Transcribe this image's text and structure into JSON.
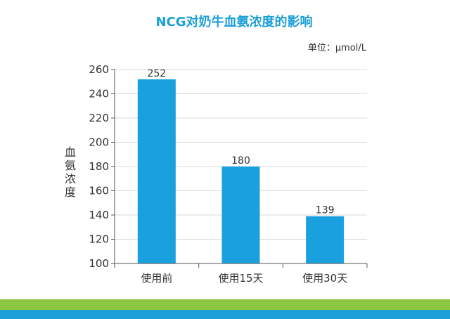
{
  "chart_data": {
    "type": "bar",
    "title": "NCG对奶牛血氨浓度的影响",
    "unit_label": "单位：µmol/L",
    "ylabel": [
      "血",
      "氨",
      "浓",
      "度"
    ],
    "xlabel": "",
    "categories": [
      "使用前",
      "使用15天",
      "使用30天"
    ],
    "values": [
      252,
      180,
      139
    ],
    "ylim": [
      100,
      260
    ],
    "yticks": [
      100,
      120,
      140,
      160,
      180,
      200,
      220,
      240,
      260
    ],
    "grid": true,
    "legend": "none"
  },
  "colors": {
    "bar": "#1aa0df",
    "title": "#1a9fd9",
    "stripe_green": "#8cc63f",
    "stripe_blue": "#1a9fd9"
  }
}
